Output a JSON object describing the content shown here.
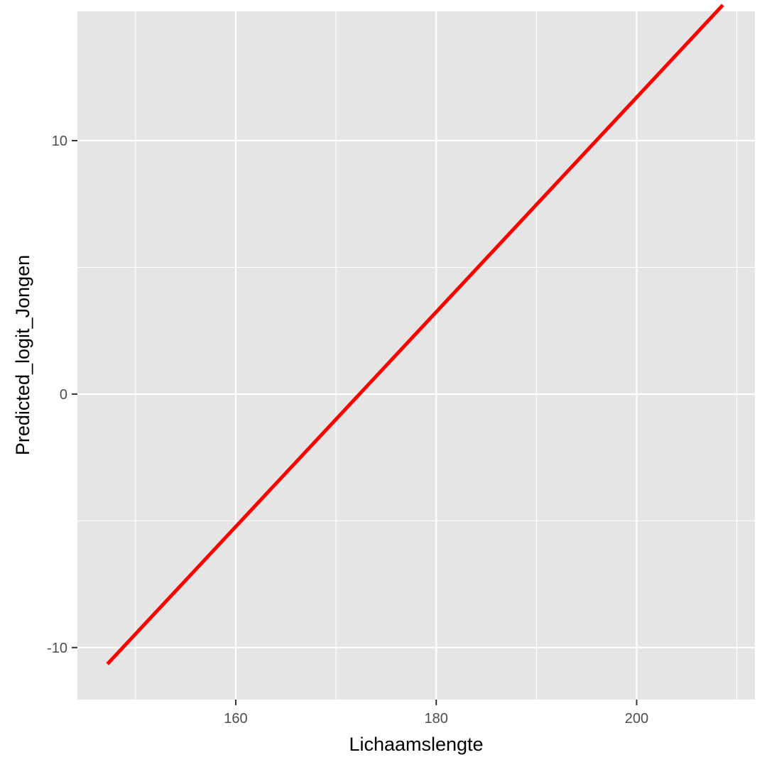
{
  "chart_data": {
    "type": "line",
    "title": "",
    "xlabel": "Lichaamslengte",
    "ylabel": "Predicted_logit_Jongen",
    "xlim": [
      144.2,
      211.8
    ],
    "ylim": [
      -12.05,
      15.1
    ],
    "x_ticks": [
      160,
      180,
      200
    ],
    "x_minor_ticks": [
      150,
      170,
      190,
      210
    ],
    "y_ticks": [
      -10,
      0,
      10
    ],
    "y_minor_ticks": [
      -5,
      5
    ],
    "grid": true,
    "legend": "none",
    "series": [
      {
        "color": "#ff0000",
        "x": [
          147.2,
          208.6
        ],
        "y": [
          -10.65,
          15.35
        ]
      }
    ]
  },
  "colors": {
    "panel": "#e5e5e5",
    "grid": "#ffffff",
    "line": "#ff0000"
  }
}
